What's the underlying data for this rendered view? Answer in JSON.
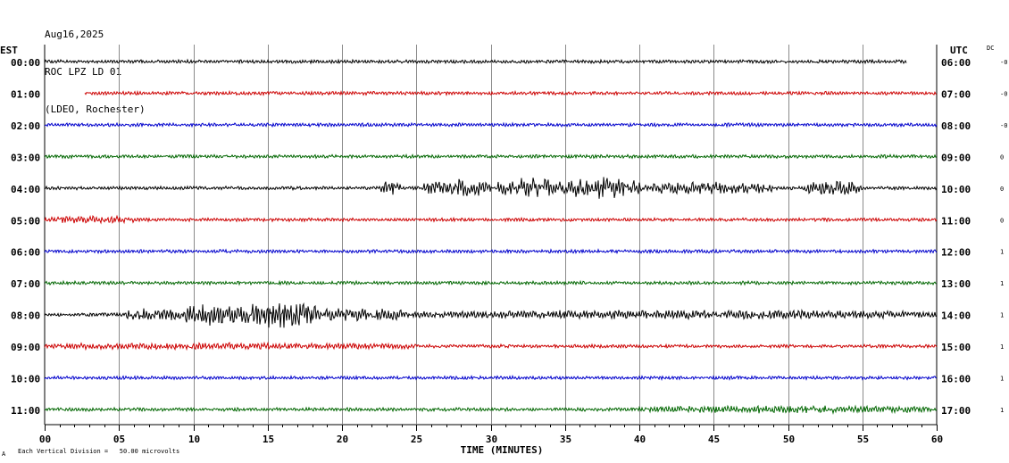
{
  "header": {
    "date": "Aug16,2025",
    "station": "ROC LPZ LD 01",
    "network": "(LDEO, Rochester)"
  },
  "left_axis_label": "EST",
  "right_axis_label": "UTC",
  "dc_label": "DC",
  "footer_note": "Each Vertical Division =   50.00 microvolts",
  "footer_mark": "A",
  "chart_data": {
    "type": "line",
    "title": "",
    "xlabel": "TIME (MINUTES)",
    "xlim": [
      0,
      60
    ],
    "x_ticks": [
      "00",
      "05",
      "10",
      "15",
      "20",
      "25",
      "30",
      "35",
      "40",
      "45",
      "50",
      "55",
      "60"
    ],
    "trace_colors": [
      "#000000",
      "#cc0000",
      "#0000cc",
      "#006600"
    ],
    "rows": [
      {
        "est": "00:00",
        "utc": "06:00",
        "dc": "-0",
        "start_min": 0,
        "end_min": 58,
        "events": []
      },
      {
        "est": "01:00",
        "utc": "07:00",
        "dc": "-0",
        "start_min": 2.7,
        "end_min": 60,
        "events": []
      },
      {
        "est": "02:00",
        "utc": "08:00",
        "dc": "-0",
        "start_min": 0,
        "end_min": 60,
        "events": []
      },
      {
        "est": "03:00",
        "utc": "09:00",
        "dc": "0",
        "start_min": 0,
        "end_min": 60,
        "events": []
      },
      {
        "est": "04:00",
        "utc": "10:00",
        "dc": "0",
        "start_min": 0,
        "end_min": 60,
        "events": [
          [
            22.5,
            24,
            0.9
          ],
          [
            25.5,
            30,
            1.2
          ],
          [
            30.5,
            35,
            1.5
          ],
          [
            35,
            40,
            1.6
          ],
          [
            40,
            49,
            0.8
          ],
          [
            51,
            55,
            1.0
          ]
        ]
      },
      {
        "est": "05:00",
        "utc": "11:00",
        "dc": "0",
        "start_min": 0,
        "end_min": 60,
        "events": [
          [
            0,
            6,
            0.4
          ]
        ]
      },
      {
        "est": "06:00",
        "utc": "12:00",
        "dc": "1",
        "start_min": 0,
        "end_min": 60,
        "events": []
      },
      {
        "est": "07:00",
        "utc": "13:00",
        "dc": "1",
        "start_min": 0,
        "end_min": 60,
        "events": []
      },
      {
        "est": "08:00",
        "utc": "14:00",
        "dc": "1",
        "start_min": 0,
        "end_min": 60,
        "events": [
          [
            5.5,
            9,
            1.0
          ],
          [
            9,
            13,
            1.6
          ],
          [
            13,
            18.5,
            2.0
          ],
          [
            18.5,
            24,
            1.0
          ],
          [
            24,
            60,
            0.5
          ]
        ]
      },
      {
        "est": "09:00",
        "utc": "15:00",
        "dc": "1",
        "start_min": 0,
        "end_min": 60,
        "events": [
          [
            0,
            25,
            0.3
          ]
        ]
      },
      {
        "est": "10:00",
        "utc": "16:00",
        "dc": "1",
        "start_min": 0,
        "end_min": 60,
        "events": []
      },
      {
        "est": "11:00",
        "utc": "17:00",
        "dc": "1",
        "start_min": 0,
        "end_min": 60,
        "events": [
          [
            40,
            60,
            0.35
          ]
        ]
      }
    ]
  }
}
